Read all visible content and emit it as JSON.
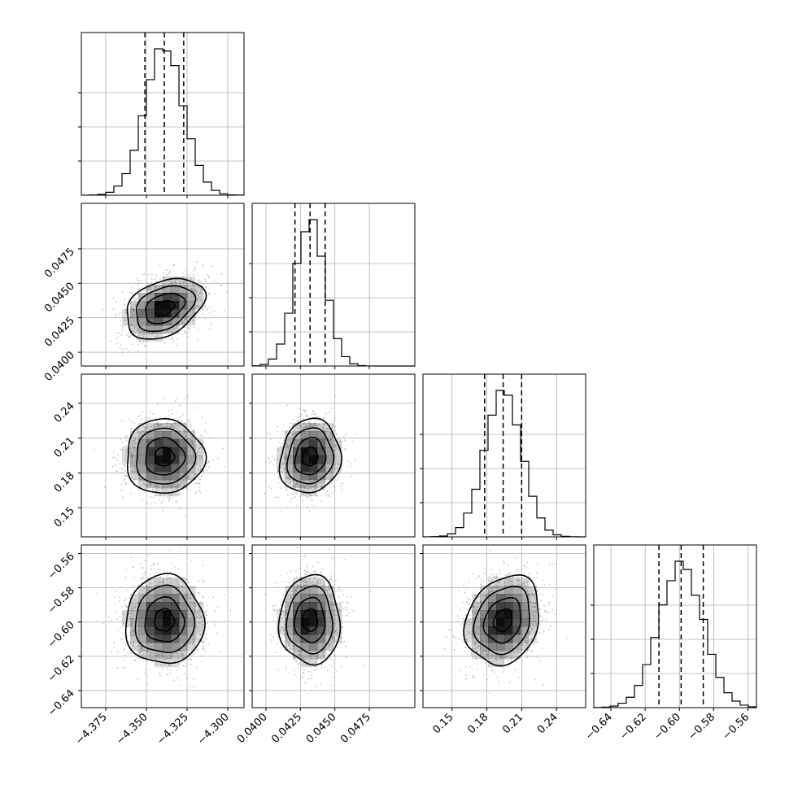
{
  "chart_data": {
    "type": "corner",
    "grid": true,
    "quantiles": [
      0.16,
      0.5,
      0.84
    ],
    "params": [
      {
        "mean": -4.339,
        "sd": 0.012,
        "range": [
          -4.39,
          -4.29
        ],
        "ticks": [
          -4.375,
          -4.35,
          -4.325,
          -4.3
        ],
        "tick_labels": [
          "−4.375",
          "−4.350",
          "−4.325",
          "−4.300"
        ],
        "hist_peak": 0.09
      },
      {
        "mean": 0.0432,
        "sd": 0.0011,
        "range": [
          0.039,
          0.0508
        ],
        "ticks": [
          0.04,
          0.0425,
          0.045,
          0.0475
        ],
        "tick_labels": [
          "0.0400",
          "0.0425",
          "0.0450",
          "0.0475"
        ],
        "hist_peak": 0.085
      },
      {
        "mean": 0.194,
        "sd": 0.016,
        "range": [
          0.125,
          0.265
        ],
        "ticks": [
          0.15,
          0.18,
          0.21,
          0.24
        ],
        "tick_labels": [
          "0.15",
          "0.18",
          "0.21",
          "0.24"
        ],
        "hist_peak": 0.085
      },
      {
        "mean": -0.599,
        "sd": 0.013,
        "range": [
          -0.65,
          -0.555
        ],
        "ticks": [
          -0.64,
          -0.62,
          -0.6,
          -0.58,
          -0.56
        ],
        "tick_labels": [
          "−0.64",
          "−0.62",
          "−0.60",
          "−0.58",
          "−0.56"
        ],
        "hist_peak": 0.085
      }
    ],
    "correlations": [
      [
        1.0,
        0.35,
        0.0,
        0.0
      ],
      [
        0.35,
        1.0,
        0.1,
        0.0
      ],
      [
        0.0,
        0.1,
        1.0,
        0.2
      ],
      [
        0.0,
        0.0,
        0.2,
        1.0
      ]
    ],
    "contour_levels_sigma": [
      0.5,
      1.0,
      1.5,
      2.0
    ],
    "colors": {
      "line": "#000000",
      "grid": "#b0b0b0",
      "points": "#9a9a9a",
      "density": "#000000"
    }
  }
}
